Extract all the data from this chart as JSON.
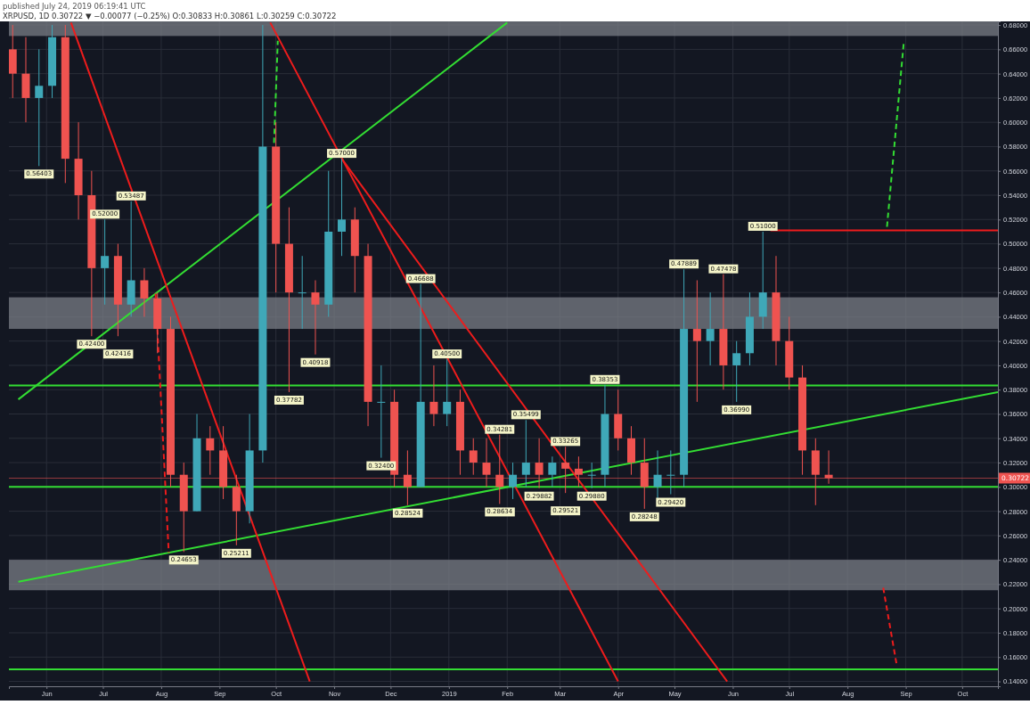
{
  "chart_data": {
    "type": "candlestick",
    "title": "published July 24, 2019 06:19:41 UTC",
    "subtitle": "XRPUSD, 1D 0.30722 ▼ −0.00077 (−0.25%) O:0.30833 H:0.30861 L:0.30259 C:0.30722",
    "x": [
      "2018-05-14",
      "2018-05-21",
      "2018-05-28",
      "2018-06-04",
      "2018-06-11",
      "2018-06-18",
      "2018-06-25",
      "2018-07-02",
      "2018-07-09",
      "2018-07-16",
      "2018-07-23",
      "2018-07-30",
      "2018-08-06",
      "2018-08-13",
      "2018-08-20",
      "2018-08-27",
      "2018-09-03",
      "2018-09-10",
      "2018-09-17",
      "2018-09-24",
      "2018-10-01",
      "2018-10-08",
      "2018-10-15",
      "2018-10-22",
      "2018-10-29",
      "2018-11-05",
      "2018-11-12",
      "2018-11-19",
      "2018-11-26",
      "2018-12-03",
      "2018-12-10",
      "2018-12-17",
      "2018-12-24",
      "2018-12-31",
      "2019-01-07",
      "2019-01-14",
      "2019-01-21",
      "2019-01-28",
      "2019-02-04",
      "2019-02-11",
      "2019-02-18",
      "2019-02-25",
      "2019-03-04",
      "2019-03-11",
      "2019-03-18",
      "2019-03-25",
      "2019-04-01",
      "2019-04-08",
      "2019-04-15",
      "2019-04-22",
      "2019-04-29",
      "2019-05-06",
      "2019-05-13",
      "2019-05-20",
      "2019-05-27",
      "2019-06-03",
      "2019-06-10",
      "2019-06-17",
      "2019-06-24",
      "2019-07-01",
      "2019-07-08",
      "2019-07-15",
      "2019-07-22"
    ],
    "ohlc": [
      [
        0.66,
        0.68,
        0.62,
        0.64
      ],
      [
        0.64,
        0.67,
        0.6,
        0.62
      ],
      [
        0.62,
        0.66,
        0.564,
        0.63
      ],
      [
        0.63,
        0.68,
        0.62,
        0.67
      ],
      [
        0.67,
        0.68,
        0.55,
        0.57
      ],
      [
        0.57,
        0.6,
        0.52,
        0.54
      ],
      [
        0.54,
        0.56,
        0.424,
        0.48
      ],
      [
        0.48,
        0.52,
        0.45,
        0.49
      ],
      [
        0.49,
        0.5,
        0.424,
        0.45
      ],
      [
        0.45,
        0.535,
        0.44,
        0.47
      ],
      [
        0.47,
        0.48,
        0.44,
        0.455
      ],
      [
        0.455,
        0.46,
        0.41,
        0.43
      ],
      [
        0.43,
        0.44,
        0.3,
        0.31
      ],
      [
        0.31,
        0.32,
        0.2465,
        0.28
      ],
      [
        0.28,
        0.36,
        0.28,
        0.34
      ],
      [
        0.34,
        0.35,
        0.31,
        0.33
      ],
      [
        0.33,
        0.35,
        0.29,
        0.3
      ],
      [
        0.3,
        0.31,
        0.252,
        0.28
      ],
      [
        0.28,
        0.36,
        0.27,
        0.33
      ],
      [
        0.33,
        0.68,
        0.32,
        0.58
      ],
      [
        0.58,
        0.6,
        0.46,
        0.5
      ],
      [
        0.5,
        0.53,
        0.378,
        0.46
      ],
      [
        0.46,
        0.49,
        0.43,
        0.46
      ],
      [
        0.46,
        0.47,
        0.409,
        0.45
      ],
      [
        0.45,
        0.56,
        0.44,
        0.51
      ],
      [
        0.51,
        0.57,
        0.49,
        0.52
      ],
      [
        0.52,
        0.53,
        0.46,
        0.49
      ],
      [
        0.49,
        0.5,
        0.35,
        0.37
      ],
      [
        0.37,
        0.4,
        0.324,
        0.37
      ],
      [
        0.37,
        0.38,
        0.3,
        0.31
      ],
      [
        0.31,
        0.33,
        0.285,
        0.3
      ],
      [
        0.3,
        0.467,
        0.3,
        0.37
      ],
      [
        0.37,
        0.4,
        0.35,
        0.36
      ],
      [
        0.36,
        0.405,
        0.35,
        0.37
      ],
      [
        0.37,
        0.38,
        0.31,
        0.33
      ],
      [
        0.33,
        0.34,
        0.31,
        0.32
      ],
      [
        0.32,
        0.34,
        0.3,
        0.31
      ],
      [
        0.31,
        0.343,
        0.286,
        0.3
      ],
      [
        0.3,
        0.32,
        0.29,
        0.31
      ],
      [
        0.31,
        0.355,
        0.3,
        0.32
      ],
      [
        0.32,
        0.34,
        0.299,
        0.31
      ],
      [
        0.31,
        0.325,
        0.3,
        0.32
      ],
      [
        0.32,
        0.333,
        0.295,
        0.315
      ],
      [
        0.315,
        0.325,
        0.3,
        0.31
      ],
      [
        0.31,
        0.32,
        0.299,
        0.31
      ],
      [
        0.31,
        0.384,
        0.3,
        0.36
      ],
      [
        0.36,
        0.38,
        0.33,
        0.34
      ],
      [
        0.34,
        0.35,
        0.31,
        0.32
      ],
      [
        0.32,
        0.34,
        0.282,
        0.3
      ],
      [
        0.3,
        0.33,
        0.29,
        0.31
      ],
      [
        0.31,
        0.33,
        0.294,
        0.31
      ],
      [
        0.31,
        0.479,
        0.3,
        0.43
      ],
      [
        0.43,
        0.47,
        0.37,
        0.42
      ],
      [
        0.42,
        0.46,
        0.4,
        0.43
      ],
      [
        0.43,
        0.475,
        0.38,
        0.4
      ],
      [
        0.4,
        0.42,
        0.37,
        0.41
      ],
      [
        0.41,
        0.46,
        0.4,
        0.44
      ],
      [
        0.44,
        0.51,
        0.43,
        0.46
      ],
      [
        0.46,
        0.49,
        0.4,
        0.42
      ],
      [
        0.42,
        0.44,
        0.38,
        0.39
      ],
      [
        0.39,
        0.4,
        0.31,
        0.33
      ],
      [
        0.33,
        0.34,
        0.285,
        0.31
      ],
      [
        0.31,
        0.33,
        0.3026,
        0.3072
      ]
    ],
    "xlim": [
      "2018-05-12",
      "2019-10-20"
    ],
    "xticks": [
      {
        "value": "2018-06-01",
        "label": "Jun"
      },
      {
        "value": "2018-07-01",
        "label": "Jul"
      },
      {
        "value": "2018-08-01",
        "label": "Aug"
      },
      {
        "value": "2018-09-01",
        "label": "Sep"
      },
      {
        "value": "2018-10-01",
        "label": "Oct"
      },
      {
        "value": "2018-11-01",
        "label": "Nov"
      },
      {
        "value": "2018-12-01",
        "label": "Dec"
      },
      {
        "value": "2019-01-01",
        "label": "2019"
      },
      {
        "value": "2019-02-01",
        "label": "Feb"
      },
      {
        "value": "2019-03-01",
        "label": "Mar"
      },
      {
        "value": "2019-04-01",
        "label": "Apr"
      },
      {
        "value": "2019-05-01",
        "label": "May"
      },
      {
        "value": "2019-06-01",
        "label": "Jun"
      },
      {
        "value": "2019-07-01",
        "label": "Jul"
      },
      {
        "value": "2019-08-01",
        "label": "Aug"
      },
      {
        "value": "2019-09-01",
        "label": "Sep"
      },
      {
        "value": "2019-10-01",
        "label": "Oct"
      }
    ],
    "ylim": [
      0.136,
      0.683
    ],
    "yticks": [
      {
        "value": 0.14,
        "label": "0.14000"
      },
      {
        "value": 0.16,
        "label": "0.16000"
      },
      {
        "value": 0.18,
        "label": "0.18000"
      },
      {
        "value": 0.2,
        "label": "0.20000"
      },
      {
        "value": 0.22,
        "label": "0.22000"
      },
      {
        "value": 0.24,
        "label": "0.24000"
      },
      {
        "value": 0.26,
        "label": "0.26000"
      },
      {
        "value": 0.28,
        "label": "0.28000"
      },
      {
        "value": 0.3,
        "label": "0.30000"
      },
      {
        "value": 0.32,
        "label": "0.32000"
      },
      {
        "value": 0.34,
        "label": "0.34000"
      },
      {
        "value": 0.36,
        "label": "0.36000"
      },
      {
        "value": 0.38,
        "label": "0.38000"
      },
      {
        "value": 0.4,
        "label": "0.40000"
      },
      {
        "value": 0.42,
        "label": "0.42000"
      },
      {
        "value": 0.44,
        "label": "0.44000"
      },
      {
        "value": 0.46,
        "label": "0.46000"
      },
      {
        "value": 0.48,
        "label": "0.48000"
      },
      {
        "value": 0.5,
        "label": "0.50000"
      },
      {
        "value": 0.52,
        "label": "0.52000"
      },
      {
        "value": 0.54,
        "label": "0.54000"
      },
      {
        "value": 0.56,
        "label": "0.56000"
      },
      {
        "value": 0.58,
        "label": "0.58000"
      },
      {
        "value": 0.6,
        "label": "0.60000"
      },
      {
        "value": 0.62,
        "label": "0.62000"
      },
      {
        "value": 0.64,
        "label": "0.64000"
      },
      {
        "value": 0.66,
        "label": "0.66000"
      },
      {
        "value": 0.68,
        "label": "0.68000"
      }
    ],
    "grid": true,
    "series": [
      {
        "type": "line",
        "color": "#33dd33",
        "x": [
          "2018-05-17",
          "2019-10-20"
        ],
        "values": [
          0.222,
          0.378
        ]
      },
      {
        "type": "line",
        "color": "#33dd33",
        "x": [
          "2018-05-17",
          "2019-02-01"
        ],
        "values": [
          0.372,
          0.682
        ]
      },
      {
        "type": "line",
        "color": "#ee1c1c",
        "x": [
          "2018-06-14",
          "2018-10-19"
        ],
        "values": [
          0.682,
          0.14
        ]
      },
      {
        "type": "line",
        "color": "#ee1c1c",
        "x": [
          "2018-09-28",
          "2019-04-01"
        ],
        "values": [
          0.682,
          0.14
        ]
      },
      {
        "type": "line",
        "color": "#ee1c1c",
        "x": [
          "2018-11-05",
          "2019-05-29"
        ],
        "values": [
          0.57,
          0.14
        ]
      },
      {
        "type": "line",
        "color": "#ee1c1c",
        "x": [
          "2019-06-21",
          "2019-10-20"
        ],
        "values": [
          0.511,
          0.511
        ]
      },
      {
        "type": "line",
        "color": "#33dd33",
        "line_style": "dashed",
        "x": [
          "2019-08-22",
          "2019-08-31"
        ],
        "values": [
          0.514,
          0.667
        ]
      },
      {
        "type": "line",
        "color": "#33dd33",
        "line_style": "dashed",
        "x": [
          "2018-09-30",
          "2018-10-02"
        ],
        "values": [
          0.583,
          0.667
        ]
      },
      {
        "type": "line",
        "color": "#ee1c1c",
        "line_style": "dashed",
        "x": [
          "2018-07-29",
          "2018-08-05"
        ],
        "values": [
          0.459,
          0.246
        ]
      },
      {
        "type": "line",
        "color": "#ee1c1c",
        "line_style": "dashed",
        "x": [
          "2019-08-20",
          "2019-08-27"
        ],
        "values": [
          0.217,
          0.155
        ]
      }
    ],
    "ref_lines": [
      {
        "axis": "y",
        "value": 0.3835,
        "color": "#33dd33"
      },
      {
        "axis": "y",
        "value": 0.3,
        "color": "#33dd33"
      },
      {
        "axis": "y",
        "value": 0.15,
        "color": "#33dd33"
      },
      {
        "axis": "y",
        "value": 0.30722,
        "label": "0.30722",
        "color": "#ef5350"
      }
    ],
    "bands": [
      {
        "axis": "y",
        "from": 0.43,
        "to": 0.456,
        "color": "#7a7d85"
      },
      {
        "axis": "y",
        "from": 0.215,
        "to": 0.24,
        "color": "#7a7d85"
      },
      {
        "axis": "y",
        "from": 0.671,
        "to": 0.683,
        "color": "#7a7d85"
      }
    ],
    "annotations": [
      {
        "text": "0.56403",
        "x": "2018-05-28",
        "y": 0.564
      },
      {
        "text": "0.52000",
        "x": "2018-07-02",
        "y": 0.52
      },
      {
        "text": "0.53487",
        "x": "2018-07-16",
        "y": 0.535
      },
      {
        "text": "0.42400",
        "x": "2018-06-25",
        "y": 0.424
      },
      {
        "text": "0.42416",
        "x": "2018-07-09",
        "y": 0.424
      },
      {
        "text": "0.24653",
        "x": "2018-08-13",
        "y": 0.2465
      },
      {
        "text": "0.25211",
        "x": "2018-09-10",
        "y": 0.252
      },
      {
        "text": "0.37782",
        "x": "2018-10-08",
        "y": 0.378
      },
      {
        "text": "0.57000",
        "x": "2018-11-05",
        "y": 0.57
      },
      {
        "text": "0.40918",
        "x": "2018-10-22",
        "y": 0.409
      },
      {
        "text": "0.32400",
        "x": "2018-11-26",
        "y": 0.324
      },
      {
        "text": "0.28524",
        "x": "2018-12-10",
        "y": 0.285
      },
      {
        "text": "0.46688",
        "x": "2018-12-17",
        "y": 0.467
      },
      {
        "text": "0.40500",
        "x": "2018-12-31",
        "y": 0.405
      },
      {
        "text": "0.34281",
        "x": "2019-01-28",
        "y": 0.343
      },
      {
        "text": "0.28634",
        "x": "2019-01-28",
        "y": 0.286
      },
      {
        "text": "0.35499",
        "x": "2019-02-11",
        "y": 0.355
      },
      {
        "text": "0.29882",
        "x": "2019-02-18",
        "y": 0.299
      },
      {
        "text": "0.33265",
        "x": "2019-03-04",
        "y": 0.333
      },
      {
        "text": "0.29521",
        "x": "2019-03-04",
        "y": 0.295
      },
      {
        "text": "0.29880",
        "x": "2019-03-18",
        "y": 0.299
      },
      {
        "text": "0.38353",
        "x": "2019-03-25",
        "y": 0.384
      },
      {
        "text": "0.28248",
        "x": "2019-04-15",
        "y": 0.282
      },
      {
        "text": "0.29420",
        "x": "2019-04-29",
        "y": 0.294
      },
      {
        "text": "0.47889",
        "x": "2019-05-06",
        "y": 0.479
      },
      {
        "text": "0.47478",
        "x": "2019-05-27",
        "y": 0.475
      },
      {
        "text": "0.36990",
        "x": "2019-06-03",
        "y": 0.37
      },
      {
        "text": "0.51000",
        "x": "2019-06-17",
        "y": 0.51
      }
    ]
  }
}
